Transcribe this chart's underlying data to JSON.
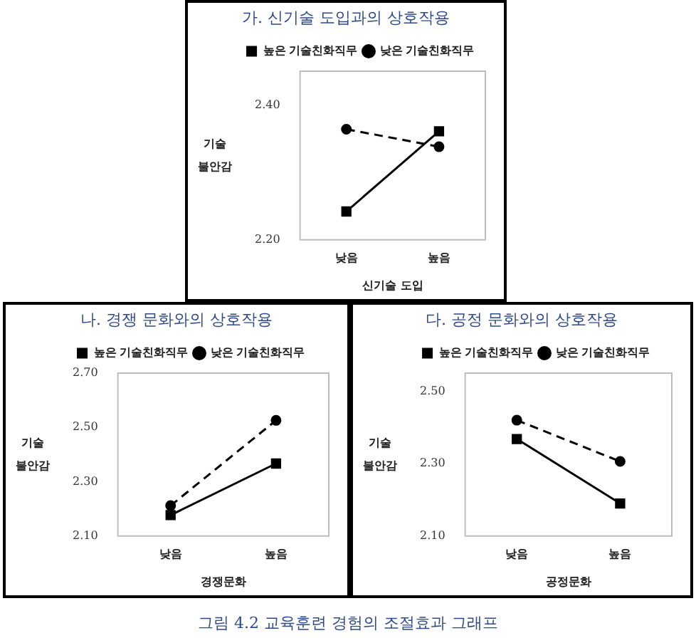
{
  "chart_data": [
    {
      "type": "line",
      "title": "가. 신기술 도입과의 상호작용",
      "xlabel": "신기술 도입",
      "ylabel": "기술 불안감",
      "categories": [
        "낮음",
        "높음"
      ],
      "ylim": [
        2.2,
        2.45
      ],
      "yticks": [
        {
          "value": 2.2,
          "label": "2.20"
        },
        {
          "value": 2.4,
          "label": "2.40"
        }
      ],
      "grid": false,
      "legend": "top",
      "series": [
        {
          "name": "높은 기술친화직무",
          "color": "#000000",
          "marker": "square",
          "line_style": "solid",
          "values": [
            2.242,
            2.361
          ]
        },
        {
          "name": "낮은 기술친화직무",
          "color": "#000000",
          "marker": "circle",
          "line_style": "dashed",
          "values": [
            2.364,
            2.338
          ]
        }
      ]
    },
    {
      "type": "line",
      "title": "나. 경쟁 문화와의 상호작용",
      "xlabel": "경쟁문화",
      "ylabel": "기술 불안감",
      "categories": [
        "낮음",
        "높음"
      ],
      "ylim": [
        2.1,
        2.7
      ],
      "yticks": [
        {
          "value": 2.1,
          "label": "2.10"
        },
        {
          "value": 2.3,
          "label": "2.30"
        },
        {
          "value": 2.5,
          "label": "2.50"
        },
        {
          "value": 2.7,
          "label": "2.70"
        }
      ],
      "grid": false,
      "legend": "top",
      "series": [
        {
          "name": "높은 기술친화직무",
          "color": "#000000",
          "marker": "square",
          "line_style": "solid",
          "values": [
            2.177,
            2.367
          ]
        },
        {
          "name": "낮은 기술친화직무",
          "color": "#000000",
          "marker": "circle",
          "line_style": "dashed",
          "values": [
            2.212,
            2.526
          ]
        }
      ]
    },
    {
      "type": "line",
      "title": "다. 공정 문화와의 상호작용",
      "xlabel": "공정문화",
      "ylabel": "기술 불안감",
      "categories": [
        "낮음",
        "높음"
      ],
      "ylim": [
        2.1,
        2.55
      ],
      "yticks": [
        {
          "value": 2.1,
          "label": "2.10"
        },
        {
          "value": 2.3,
          "label": "2.30"
        },
        {
          "value": 2.5,
          "label": "2.50"
        }
      ],
      "grid": false,
      "legend": "top",
      "annotations": [
        "그림 4.2 교육훈련 경험의 조절효과 그래프"
      ],
      "series": [
        {
          "name": "높은 기술친화직무",
          "color": "#000000",
          "marker": "square",
          "line_style": "solid",
          "values": [
            2.368,
            2.19
          ]
        },
        {
          "name": "낮은 기술친화직무",
          "color": "#000000",
          "marker": "circle",
          "line_style": "dashed",
          "values": [
            2.42,
            2.306
          ]
        }
      ]
    }
  ]
}
